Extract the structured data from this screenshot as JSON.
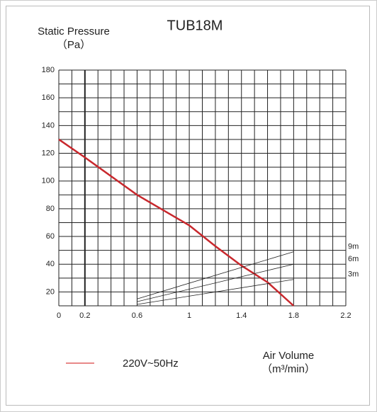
{
  "chart_data": {
    "type": "line",
    "title": "TUB18M",
    "y_label": "Static Pressure",
    "y_unit": "（Pa）",
    "x_label": "Air Volume",
    "x_unit": "（m³/min）",
    "xlim": [
      0,
      2.2
    ],
    "ylim": [
      10,
      180
    ],
    "xticks": [
      0,
      0.2,
      0.6,
      1,
      1.4,
      1.8,
      2.2
    ],
    "yticks": [
      20,
      40,
      60,
      80,
      100,
      120,
      140,
      160,
      180
    ],
    "xgrid": [
      0,
      0.1,
      0.2,
      0.3,
      0.4,
      0.5,
      0.6,
      0.7,
      0.8,
      0.9,
      1,
      1.1,
      1.2,
      1.3,
      1.4,
      1.5,
      1.6,
      1.7,
      1.8,
      1.9,
      2,
      2.1,
      2.2
    ],
    "ygrid": [
      10,
      20,
      30,
      40,
      50,
      60,
      70,
      80,
      90,
      100,
      110,
      120,
      130,
      140,
      150,
      160,
      170,
      180
    ],
    "grid": true,
    "series": [
      {
        "name": "220V~50Hz",
        "color": "#c8282d",
        "x": [
          0,
          0.2,
          0.6,
          1,
          1.2,
          1.4,
          1.6,
          1.8
        ],
        "values": [
          130,
          117,
          90,
          68,
          53,
          39,
          27,
          10
        ]
      },
      {
        "name": "9m",
        "color": "#222222",
        "x": [
          0.6,
          1.8
        ],
        "values": [
          15,
          49
        ]
      },
      {
        "name": "6m",
        "color": "#222222",
        "x": [
          0.6,
          1.8
        ],
        "values": [
          13,
          40
        ]
      },
      {
        "name": "3m",
        "color": "#222222",
        "x": [
          0.6,
          1.8
        ],
        "values": [
          11,
          29
        ]
      }
    ]
  }
}
